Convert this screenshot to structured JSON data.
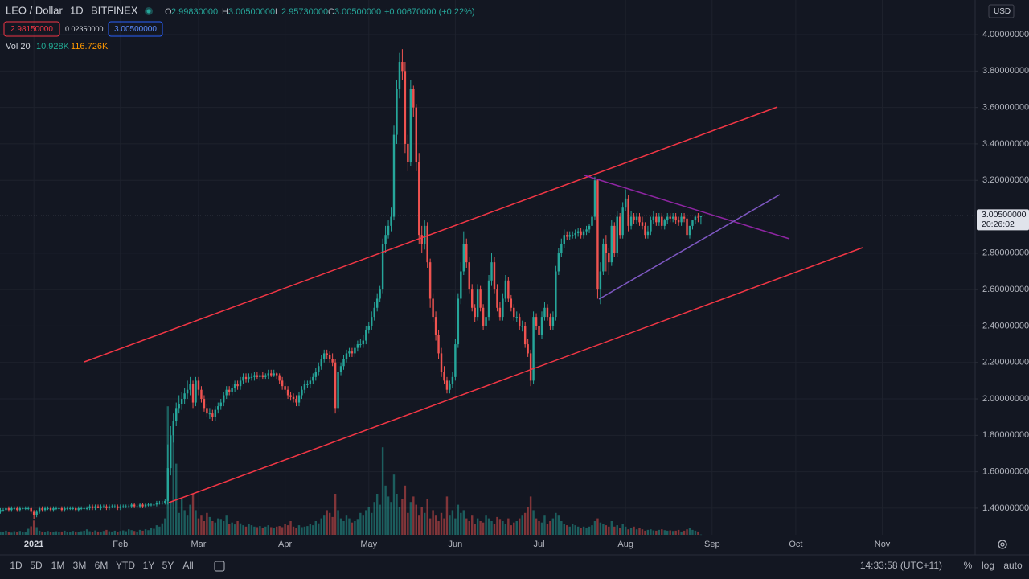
{
  "header": {
    "symbol": "LEO / Dollar",
    "interval": "1D",
    "exchange": "BITFINEX",
    "ohlc": [
      {
        "label": "O",
        "value": "2.99830000"
      },
      {
        "label": "H",
        "value": "3.00500000"
      },
      {
        "label": "L",
        "value": "2.95730000"
      },
      {
        "label": "C",
        "value": "3.00500000"
      }
    ],
    "change": "+0.00670000 (+0.22%)",
    "bid": "2.98150000",
    "spread": "0.02350000",
    "ask": "3.00500000",
    "price_label": "3.00500000",
    "countdown": "20:26:02",
    "currency": "USD"
  },
  "toolbar": {
    "ranges": [
      "1D",
      "5D",
      "1M",
      "3M",
      "6M",
      "YTD",
      "1Y",
      "5Y",
      "All"
    ],
    "clock": "14:33:58 (UTC+11)",
    "options": [
      "%",
      "log",
      "auto"
    ]
  },
  "chart_data": {
    "type": "candlestick",
    "up_color": "#26a69a",
    "down_color": "#ef5350",
    "xlim": [
      0,
      349.4
    ],
    "xticks": [
      {
        "value": 12,
        "label": "2021"
      },
      {
        "value": 43,
        "label": "Feb"
      },
      {
        "value": 71,
        "label": "Mar"
      },
      {
        "value": 102,
        "label": "Apr"
      },
      {
        "value": 132,
        "label": "May"
      },
      {
        "value": 163,
        "label": "Jun"
      },
      {
        "value": 193,
        "label": "Jul"
      },
      {
        "value": 224,
        "label": "Aug"
      },
      {
        "value": 255,
        "label": "Sep"
      },
      {
        "value": 285,
        "label": "Oct"
      },
      {
        "value": 316,
        "label": "Nov"
      }
    ],
    "ylim": [
      1.254,
      4.19
    ],
    "yticks": [
      {
        "value": 1.4,
        "label": "1.40000000"
      },
      {
        "value": 1.6,
        "label": "1.60000000"
      },
      {
        "value": 1.8,
        "label": "1.80000000"
      },
      {
        "value": 2.0,
        "label": "2.00000000"
      },
      {
        "value": 2.2,
        "label": "2.20000000"
      },
      {
        "value": 2.4,
        "label": "2.40000000"
      },
      {
        "value": 2.6,
        "label": "2.60000000"
      },
      {
        "value": 2.8,
        "label": "2.80000000"
      },
      {
        "value": 3.2,
        "label": "3.20000000"
      },
      {
        "value": 3.4,
        "label": "3.40000000"
      },
      {
        "value": 3.6,
        "label": "3.60000000"
      },
      {
        "value": 3.8,
        "label": "3.80000000"
      },
      {
        "value": 4.0,
        "label": "4.00000000"
      }
    ],
    "grid": true,
    "open": [
      1.38,
      1.39,
      1.39,
      1.4,
      1.39,
      1.4,
      1.4,
      1.39,
      1.4,
      1.4,
      1.4,
      1.4,
      1.38,
      1.36,
      1.38,
      1.4,
      1.39,
      1.4,
      1.4,
      1.39,
      1.4,
      1.4,
      1.4,
      1.39,
      1.4,
      1.4,
      1.4,
      1.4,
      1.39,
      1.4,
      1.4,
      1.4,
      1.4,
      1.41,
      1.4,
      1.41,
      1.4,
      1.41,
      1.41,
      1.4,
      1.41,
      1.41,
      1.41,
      1.4,
      1.41,
      1.41,
      1.41,
      1.41,
      1.42,
      1.41,
      1.41,
      1.42,
      1.41,
      1.42,
      1.42,
      1.42,
      1.42,
      1.43,
      1.43,
      1.43,
      1.44,
      1.62,
      1.8,
      1.88,
      1.95,
      1.97,
      2.0,
      2.03,
      2.05,
      2.08,
      1.98,
      2.1,
      2.05,
      2.0,
      1.95,
      1.92,
      1.92,
      1.9,
      1.94,
      1.96,
      1.98,
      2.02,
      2.05,
      2.04,
      2.06,
      2.08,
      2.07,
      2.1,
      2.12,
      2.11,
      2.12,
      2.12,
      2.13,
      2.12,
      2.13,
      2.12,
      2.13,
      2.14,
      2.13,
      2.14,
      2.13,
      2.1,
      2.07,
      2.05,
      2.02,
      2.01,
      2.0,
      1.98,
      2.02,
      2.05,
      2.08,
      2.08,
      2.1,
      2.12,
      2.15,
      2.18,
      2.22,
      2.25,
      2.24,
      2.22,
      2.2,
      1.95,
      2.15,
      2.18,
      2.22,
      2.25,
      2.26,
      2.25,
      2.28,
      2.3,
      2.3,
      2.32,
      2.38,
      2.4,
      2.45,
      2.5,
      2.55,
      2.6,
      2.85,
      2.9,
      2.95,
      3.0,
      3.45,
      3.7,
      3.85,
      3.8,
      3.4,
      3.3,
      3.7,
      3.6,
      3.3,
      2.9,
      2.85,
      2.95,
      2.75,
      2.55,
      2.45,
      2.35,
      2.25,
      2.15,
      2.1,
      2.05,
      2.08,
      2.12,
      2.3,
      2.55,
      2.7,
      2.85,
      2.75,
      2.6,
      2.5,
      2.45,
      2.6,
      2.5,
      2.4,
      2.45,
      2.65,
      2.75,
      2.6,
      2.5,
      2.45,
      2.55,
      2.65,
      2.55,
      2.5,
      2.45,
      2.45,
      2.4,
      2.4,
      2.3,
      2.25,
      2.1,
      2.45,
      2.4,
      2.35,
      2.45,
      2.5,
      2.45,
      2.4,
      2.45,
      2.7,
      2.8,
      2.85,
      2.9,
      2.89,
      2.9,
      2.9,
      2.91,
      2.92,
      2.9,
      2.92,
      2.93,
      2.95,
      3.0,
      3.2,
      2.6,
      2.7,
      2.85,
      2.8,
      2.75,
      2.95,
      2.8,
      3.0,
      2.9,
      3.05,
      3.1,
      2.95,
      3.0,
      2.98,
      3.0,
      2.97,
      2.95,
      2.9,
      2.92,
      2.98,
      3.0,
      2.97,
      3.0,
      2.95,
      2.98,
      3.0,
      2.99,
      3.0,
      2.98,
      2.97,
      3.0,
      2.99,
      2.9,
      2.95,
      2.98,
      3.0,
      2.9983
    ],
    "high": [
      1.4,
      1.4,
      1.41,
      1.41,
      1.41,
      1.41,
      1.41,
      1.41,
      1.41,
      1.41,
      1.41,
      1.41,
      1.39,
      1.39,
      1.41,
      1.41,
      1.41,
      1.41,
      1.41,
      1.41,
      1.41,
      1.41,
      1.41,
      1.41,
      1.41,
      1.41,
      1.41,
      1.41,
      1.41,
      1.41,
      1.41,
      1.41,
      1.42,
      1.42,
      1.42,
      1.42,
      1.42,
      1.42,
      1.42,
      1.42,
      1.42,
      1.42,
      1.42,
      1.42,
      1.42,
      1.42,
      1.42,
      1.43,
      1.43,
      1.42,
      1.43,
      1.43,
      1.43,
      1.43,
      1.43,
      1.43,
      1.44,
      1.44,
      1.44,
      1.45,
      1.75,
      1.85,
      1.92,
      1.98,
      2.02,
      2.04,
      2.06,
      2.1,
      2.12,
      2.1,
      2.12,
      2.12,
      2.07,
      2.02,
      1.97,
      1.95,
      1.94,
      1.96,
      1.98,
      2.0,
      2.04,
      2.07,
      2.07,
      2.08,
      2.1,
      2.1,
      2.12,
      2.14,
      2.14,
      2.14,
      2.14,
      2.15,
      2.15,
      2.14,
      2.15,
      2.14,
      2.16,
      2.16,
      2.16,
      2.15,
      2.14,
      2.12,
      2.09,
      2.07,
      2.04,
      2.03,
      2.02,
      2.04,
      2.07,
      2.1,
      2.1,
      2.12,
      2.14,
      2.17,
      2.2,
      2.24,
      2.27,
      2.27,
      2.26,
      2.25,
      2.22,
      2.18,
      2.2,
      2.24,
      2.27,
      2.28,
      2.28,
      2.3,
      2.32,
      2.33,
      2.35,
      2.4,
      2.42,
      2.48,
      2.53,
      2.58,
      2.62,
      2.88,
      2.95,
      2.98,
      3.05,
      3.5,
      3.75,
      3.9,
      3.92,
      3.85,
      3.45,
      3.75,
      3.72,
      3.62,
      3.35,
      2.95,
      2.98,
      2.97,
      2.77,
      2.58,
      2.48,
      2.38,
      2.28,
      2.18,
      2.12,
      2.1,
      2.15,
      2.33,
      2.58,
      2.75,
      2.92,
      2.88,
      2.78,
      2.63,
      2.52,
      2.63,
      2.62,
      2.52,
      2.48,
      2.68,
      2.8,
      2.78,
      2.63,
      2.53,
      2.58,
      2.68,
      2.67,
      2.57,
      2.52,
      2.48,
      2.47,
      2.43,
      2.42,
      2.33,
      2.27,
      2.48,
      2.47,
      2.42,
      2.48,
      2.53,
      2.52,
      2.47,
      2.48,
      2.73,
      2.83,
      2.88,
      2.93,
      2.92,
      2.92,
      2.92,
      2.93,
      2.94,
      2.94,
      2.93,
      2.95,
      2.96,
      3.02,
      3.22,
      3.21,
      2.75,
      2.88,
      2.9,
      2.83,
      2.98,
      2.97,
      3.03,
      3.02,
      3.08,
      3.15,
      3.12,
      3.03,
      3.02,
      3.02,
      3.02,
      3.0,
      2.97,
      2.95,
      3.0,
      3.03,
      3.02,
      3.02,
      3.02,
      2.99,
      3.02,
      3.02,
      3.02,
      3.02,
      3.0,
      3.02,
      3.02,
      3.01,
      2.95,
      2.98,
      3.01,
      3.02,
      3.005
    ],
    "low": [
      1.37,
      1.38,
      1.38,
      1.38,
      1.38,
      1.39,
      1.38,
      1.38,
      1.39,
      1.39,
      1.39,
      1.37,
      1.34,
      1.35,
      1.37,
      1.38,
      1.38,
      1.39,
      1.38,
      1.38,
      1.39,
      1.39,
      1.38,
      1.38,
      1.39,
      1.39,
      1.39,
      1.38,
      1.38,
      1.39,
      1.39,
      1.39,
      1.39,
      1.39,
      1.39,
      1.4,
      1.39,
      1.4,
      1.39,
      1.39,
      1.4,
      1.4,
      1.39,
      1.39,
      1.4,
      1.4,
      1.4,
      1.4,
      1.4,
      1.4,
      1.4,
      1.4,
      1.4,
      1.41,
      1.41,
      1.41,
      1.41,
      1.42,
      1.42,
      1.42,
      1.42,
      1.58,
      1.76,
      1.85,
      1.92,
      1.94,
      1.97,
      2.0,
      2.02,
      1.95,
      1.96,
      2.02,
      1.98,
      1.93,
      1.9,
      1.89,
      1.88,
      1.88,
      1.92,
      1.94,
      1.96,
      2.0,
      2.02,
      2.02,
      2.04,
      2.05,
      2.05,
      2.08,
      2.09,
      2.09,
      2.1,
      2.1,
      2.11,
      2.1,
      2.11,
      2.11,
      2.11,
      2.12,
      2.12,
      2.11,
      2.08,
      2.05,
      2.03,
      2.0,
      1.99,
      1.98,
      1.96,
      1.96,
      2.0,
      2.03,
      2.06,
      2.06,
      2.08,
      2.1,
      2.13,
      2.16,
      2.2,
      2.22,
      2.2,
      2.18,
      1.92,
      1.93,
      2.13,
      2.16,
      2.2,
      2.23,
      2.23,
      2.23,
      2.26,
      2.28,
      2.28,
      2.3,
      2.36,
      2.38,
      2.43,
      2.48,
      2.53,
      2.58,
      2.8,
      2.88,
      2.92,
      2.98,
      3.4,
      3.65,
      3.75,
      3.35,
      3.25,
      3.28,
      3.55,
      3.25,
      2.85,
      2.8,
      2.82,
      2.72,
      2.5,
      2.42,
      2.32,
      2.22,
      2.12,
      2.08,
      2.03,
      2.03,
      2.06,
      2.1,
      2.28,
      2.52,
      2.68,
      2.72,
      2.58,
      2.48,
      2.42,
      2.43,
      2.48,
      2.38,
      2.38,
      2.43,
      2.62,
      2.58,
      2.48,
      2.43,
      2.43,
      2.53,
      2.53,
      2.48,
      2.43,
      2.42,
      2.38,
      2.37,
      2.28,
      2.23,
      2.07,
      2.08,
      2.38,
      2.33,
      2.33,
      2.43,
      2.43,
      2.38,
      2.38,
      2.43,
      2.68,
      2.78,
      2.83,
      2.87,
      2.87,
      2.88,
      2.88,
      2.89,
      2.88,
      2.88,
      2.9,
      2.91,
      2.93,
      2.98,
      2.55,
      2.52,
      2.68,
      2.7,
      2.68,
      2.73,
      2.78,
      2.78,
      2.88,
      2.88,
      3.03,
      2.92,
      2.93,
      2.96,
      2.96,
      2.95,
      2.93,
      2.88,
      2.88,
      2.9,
      2.96,
      2.95,
      2.95,
      2.93,
      2.93,
      2.96,
      2.97,
      2.97,
      2.96,
      2.95,
      2.95,
      2.97,
      2.88,
      2.88,
      2.93,
      2.96,
      2.97,
      2.9573
    ],
    "close": [
      1.39,
      1.39,
      1.4,
      1.39,
      1.4,
      1.4,
      1.39,
      1.4,
      1.4,
      1.4,
      1.4,
      1.38,
      1.36,
      1.38,
      1.4,
      1.39,
      1.4,
      1.4,
      1.39,
      1.4,
      1.4,
      1.4,
      1.39,
      1.4,
      1.4,
      1.4,
      1.4,
      1.39,
      1.4,
      1.4,
      1.4,
      1.4,
      1.41,
      1.4,
      1.41,
      1.4,
      1.41,
      1.41,
      1.4,
      1.41,
      1.41,
      1.41,
      1.4,
      1.41,
      1.41,
      1.41,
      1.41,
      1.42,
      1.41,
      1.41,
      1.42,
      1.41,
      1.42,
      1.42,
      1.42,
      1.42,
      1.43,
      1.43,
      1.43,
      1.44,
      1.62,
      1.8,
      1.88,
      1.95,
      1.97,
      2.0,
      2.03,
      2.05,
      2.08,
      1.98,
      2.1,
      2.05,
      2.0,
      1.95,
      1.92,
      1.92,
      1.9,
      1.94,
      1.96,
      1.98,
      2.02,
      2.05,
      2.04,
      2.06,
      2.08,
      2.07,
      2.1,
      2.12,
      2.11,
      2.12,
      2.12,
      2.13,
      2.12,
      2.13,
      2.12,
      2.13,
      2.14,
      2.13,
      2.14,
      2.13,
      2.1,
      2.07,
      2.05,
      2.02,
      2.01,
      2.0,
      1.98,
      2.02,
      2.05,
      2.08,
      2.08,
      2.1,
      2.12,
      2.15,
      2.18,
      2.22,
      2.25,
      2.24,
      2.22,
      2.2,
      1.95,
      2.15,
      2.18,
      2.22,
      2.25,
      2.26,
      2.25,
      2.28,
      2.3,
      2.3,
      2.32,
      2.38,
      2.4,
      2.45,
      2.5,
      2.55,
      2.6,
      2.85,
      2.9,
      2.95,
      3.0,
      3.45,
      3.7,
      3.85,
      3.8,
      3.4,
      3.3,
      3.7,
      3.6,
      3.3,
      2.9,
      2.85,
      2.95,
      2.75,
      2.55,
      2.45,
      2.35,
      2.25,
      2.15,
      2.1,
      2.05,
      2.08,
      2.12,
      2.3,
      2.55,
      2.7,
      2.85,
      2.75,
      2.6,
      2.5,
      2.45,
      2.6,
      2.5,
      2.4,
      2.45,
      2.65,
      2.75,
      2.6,
      2.5,
      2.45,
      2.55,
      2.65,
      2.55,
      2.5,
      2.45,
      2.45,
      2.4,
      2.4,
      2.3,
      2.25,
      2.1,
      2.45,
      2.4,
      2.35,
      2.45,
      2.5,
      2.45,
      2.4,
      2.45,
      2.7,
      2.8,
      2.85,
      2.9,
      2.89,
      2.9,
      2.9,
      2.91,
      2.92,
      2.9,
      2.92,
      2.93,
      2.95,
      3.0,
      3.2,
      2.6,
      2.7,
      2.85,
      2.8,
      2.75,
      2.95,
      2.8,
      3.0,
      2.9,
      3.05,
      3.1,
      2.95,
      3.0,
      2.98,
      3.0,
      2.97,
      2.95,
      2.9,
      2.92,
      2.98,
      3.0,
      2.97,
      3.0,
      2.95,
      2.98,
      3.0,
      2.99,
      3.0,
      2.98,
      2.97,
      3.0,
      2.99,
      2.9,
      2.95,
      2.98,
      3.0,
      2.9983,
      3.005
    ],
    "volume": {
      "name": "Vol 20",
      "ylim": [
        0,
        5000
      ],
      "last_label": "10.928K",
      "ma_label": "116.726K",
      "values": [
        120,
        90,
        150,
        110,
        80,
        130,
        100,
        140,
        90,
        110,
        220,
        310,
        520,
        280,
        150,
        120,
        100,
        140,
        110,
        90,
        130,
        100,
        120,
        150,
        110,
        90,
        140,
        120,
        100,
        130,
        150,
        200,
        130,
        110,
        160,
        120,
        100,
        140,
        180,
        130,
        120,
        150,
        110,
        140,
        160,
        130,
        200,
        170,
        140,
        120,
        180,
        150,
        200,
        170,
        260,
        220,
        350,
        300,
        420,
        600,
        4700,
        1200,
        3800,
        2600,
        800,
        1300,
        900,
        700,
        1100,
        1500,
        900,
        600,
        700,
        500,
        800,
        650,
        500,
        450,
        600,
        550,
        500,
        700,
        400,
        450,
        380,
        500,
        420,
        350,
        300,
        400,
        350,
        300,
        280,
        320,
        260,
        300,
        350,
        280,
        250,
        300,
        320,
        280,
        400,
        350,
        500,
        300,
        260,
        350,
        280,
        300,
        320,
        400,
        350,
        500,
        420,
        600,
        700,
        900,
        800,
        650,
        1500,
        900,
        600,
        500,
        700,
        600,
        450,
        500,
        550,
        800,
        700,
        900,
        1000,
        800,
        1200,
        1500,
        1100,
        3200,
        1800,
        1400,
        1200,
        2200,
        1500,
        1000,
        1300,
        1800,
        800,
        1200,
        1400,
        1100,
        700,
        1000,
        800,
        1300,
        600,
        900,
        700,
        500,
        800,
        600,
        1400,
        700,
        900,
        600,
        1100,
        800,
        900,
        600,
        500,
        700,
        400,
        600,
        500,
        450,
        700,
        600,
        500,
        400,
        650,
        550,
        500,
        400,
        600,
        350,
        450,
        500,
        600,
        700,
        800,
        1000,
        1400,
        900,
        600,
        500,
        450,
        700,
        400,
        500,
        600,
        800,
        700,
        500,
        400,
        350,
        300,
        400,
        350,
        300,
        250,
        300,
        250,
        300,
        350,
        500,
        600,
        450,
        400,
        350,
        300,
        500,
        300,
        350,
        250,
        400,
        300,
        200,
        250,
        300,
        200,
        250,
        200,
        150,
        180,
        200,
        160,
        150,
        180,
        200,
        170,
        150,
        160,
        140,
        150,
        180,
        120,
        150,
        200,
        250,
        180,
        150,
        120,
        10.928
      ]
    }
  }
}
